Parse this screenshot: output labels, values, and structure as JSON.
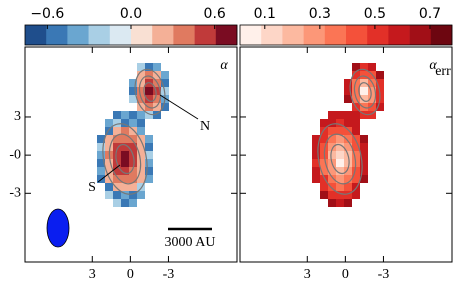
{
  "chart_data": {
    "type": "map",
    "panels": [
      {
        "label": "α",
        "colorbar": {
          "colors": [
            "#1f4e8c",
            "#3a78b5",
            "#6aa6d0",
            "#a9cfe5",
            "#dbe9f2",
            "#f9e0d3",
            "#f4b097",
            "#e07a60",
            "#c03a3a",
            "#7a0c22"
          ],
          "lim": [
            -0.76,
            0.76
          ],
          "ticks": [
            {
              "value": -0.6,
              "label": "−0.6"
            },
            {
              "value": 0,
              "label": "0.0"
            },
            {
              "value": 0.6,
              "label": "0.6"
            }
          ]
        },
        "annotations": [
          "N",
          "S",
          "3000 AU"
        ]
      },
      {
        "label": "α",
        "label_sub": "err",
        "colorbar": {
          "colors": [
            "#fff0ea",
            "#fdd6c7",
            "#fcb9a0",
            "#fc9778",
            "#fb7555",
            "#f4513a",
            "#e23028",
            "#c5191d",
            "#a10f17",
            "#6d0610"
          ],
          "lim": [
            0.01,
            0.78
          ],
          "ticks": [
            0.1,
            0.3,
            0.5,
            0.7
          ]
        }
      }
    ],
    "xlim": [
      8.3,
      -8.4
    ],
    "ylim": [
      -8.4,
      8.5
    ],
    "xticks": [
      3,
      0,
      -3
    ],
    "yticks": [
      3,
      {
        "value": 0,
        "label": "-0"
      },
      -3
    ]
  }
}
